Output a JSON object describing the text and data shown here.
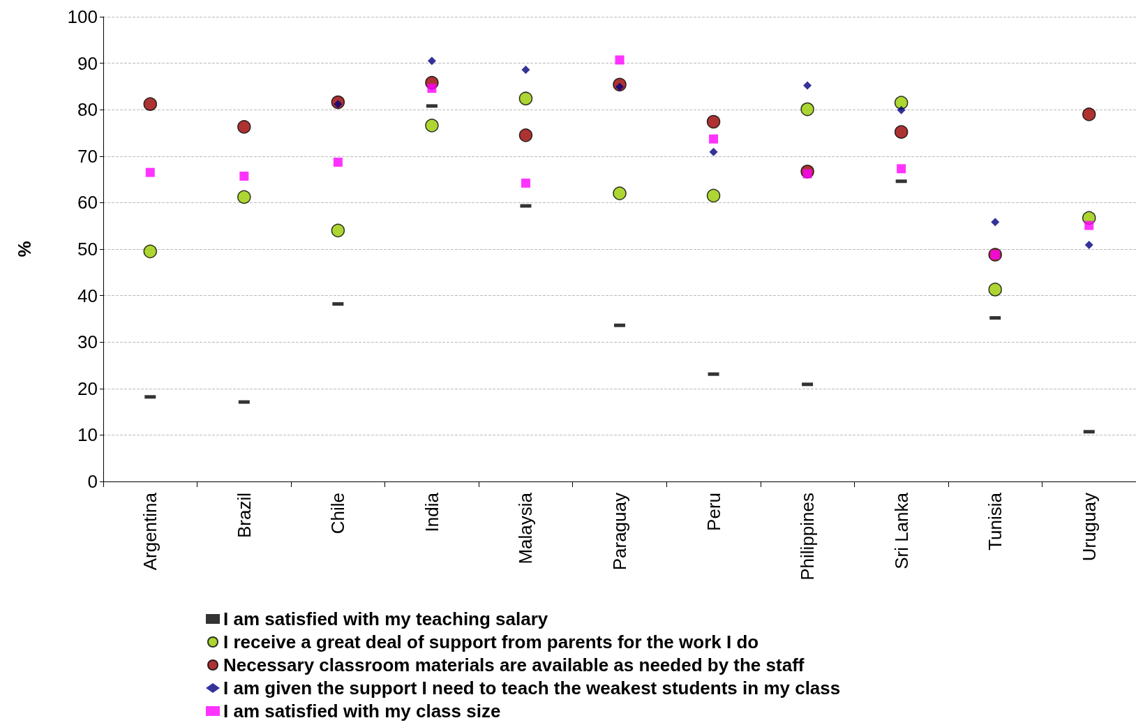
{
  "chart_data": {
    "type": "scatter",
    "ylabel": "%",
    "categories": [
      "Argentina",
      "Brazil",
      "Chile",
      "India",
      "Malaysia",
      "Paraguay",
      "Peru",
      "Philippines",
      "Sri Lanka",
      "Tunisia",
      "Uruguay"
    ],
    "ylim": [
      0,
      100
    ],
    "yticks": [
      0,
      10,
      20,
      30,
      40,
      50,
      60,
      70,
      80,
      90,
      100
    ],
    "grid": "y",
    "legend": "bottom",
    "series": [
      {
        "name": "I am satisfied with my teaching salary",
        "color": "#000000",
        "values": [
          18.2,
          17.1,
          38.2,
          80.8,
          59.3,
          33.6,
          23.1,
          20.9,
          64.6,
          35.2,
          10.7
        ]
      },
      {
        "name": "I receive a great deal of support from parents for the work I do",
        "color": "#99cc00",
        "marker": "circle",
        "values": [
          49.5,
          61.2,
          54,
          76.6,
          82.4,
          62,
          61.5,
          80.1,
          81.5,
          41.3,
          56.7
        ]
      },
      {
        "name": "Necessary classroom materials are available as needed by the staff",
        "color": "#990000",
        "marker": "circle",
        "values": [
          81.2,
          76.3,
          81.6,
          85.8,
          74.5,
          85.4,
          77.4,
          66.7,
          75.2,
          48.8,
          79
        ]
      },
      {
        "name": "I am given the support I need to teach the weakest students in my class",
        "color": "#000080",
        "marker": "diamond",
        "values": [
          null,
          null,
          81.2,
          90.5,
          88.6,
          84.9,
          70.9,
          85.2,
          79.9,
          55.8,
          50.9
        ]
      },
      {
        "name": "I am satisfied with my class size",
        "color": "#ff00ff",
        "marker": "square",
        "values": [
          66.5,
          65.7,
          68.7,
          84.6,
          64.2,
          90.7,
          73.7,
          66.2,
          67.3,
          48.8,
          55.1
        ]
      }
    ]
  }
}
